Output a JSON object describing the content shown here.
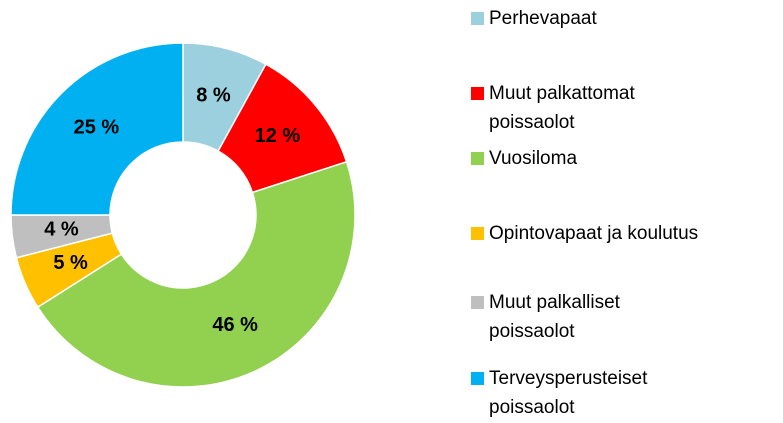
{
  "chart_data": {
    "type": "donut",
    "categories": [
      "Perhevapaat",
      "Muut palkattomat\npoissaolot",
      "Vuosiloma",
      "Opintovapaat ja koulutus",
      "Muut palkalliset\npoissaolot",
      "Terveysperusteiset\npoissaolot"
    ],
    "values": [
      8,
      12,
      46,
      5,
      4,
      25
    ],
    "value_labels": [
      "8 %",
      "12 %",
      "46 %",
      "5 %",
      "4 %",
      "25 %"
    ],
    "colors": [
      "#9DD0DF",
      "#FF0000",
      "#92D050",
      "#FFC000",
      "#BFBFBF",
      "#00B0F0"
    ],
    "legend": "right"
  }
}
